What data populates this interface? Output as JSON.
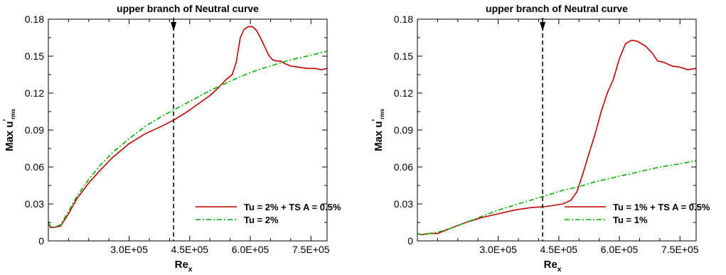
{
  "chart_data": [
    {
      "type": "line",
      "title": "",
      "annotation": "upper branch of Neutral curve",
      "xlabel": "Re",
      "xlabel_sub": "x",
      "ylabel_main": "Max u",
      "ylabel_prime": "′",
      "ylabel_sub": "rms",
      "xlim": [
        100000,
        790000
      ],
      "ylim": [
        0,
        0.18
      ],
      "xticks": [
        300000,
        450000,
        600000,
        750000
      ],
      "xtick_labels": [
        "3.0E+05",
        "4.5E+05",
        "6.0E+05",
        "7.5E+05"
      ],
      "yticks": [
        0,
        0.03,
        0.06,
        0.09,
        0.12,
        0.15,
        0.18
      ],
      "ytick_labels": [
        "0",
        "0.03",
        "0.06",
        "0.09",
        "0.12",
        "0.15",
        "0.18"
      ],
      "neutral_x": 410000,
      "legend_position": "bottom-right",
      "series": [
        {
          "name": "Tu = 2% + TS A = 0.5%",
          "color": "#c00000",
          "style": "solid",
          "x": [
            100000,
            105000,
            115000,
            130000,
            150000,
            170000,
            200000,
            230000,
            260000,
            300000,
            340000,
            380000,
            410000,
            440000,
            470000,
            500000,
            520000,
            540000,
            555000,
            565000,
            575000,
            585000,
            595000,
            605000,
            615000,
            625000,
            635000,
            645000,
            655000,
            665000,
            675000,
            685000,
            700000,
            720000,
            740000,
            760000,
            775000,
            790000
          ],
          "y": [
            0.015,
            0.011,
            0.011,
            0.012,
            0.022,
            0.034,
            0.047,
            0.058,
            0.068,
            0.079,
            0.087,
            0.093,
            0.098,
            0.104,
            0.111,
            0.118,
            0.124,
            0.131,
            0.135,
            0.145,
            0.165,
            0.172,
            0.174,
            0.174,
            0.171,
            0.165,
            0.158,
            0.151,
            0.147,
            0.146,
            0.146,
            0.144,
            0.142,
            0.141,
            0.14,
            0.14,
            0.139,
            0.14
          ]
        },
        {
          "name": "Tu = 2%",
          "color": "#00b000",
          "style": "dashdot",
          "x": [
            100000,
            105000,
            115000,
            130000,
            150000,
            170000,
            200000,
            230000,
            260000,
            300000,
            340000,
            380000,
            420000,
            460000,
            500000,
            540000,
            580000,
            620000,
            660000,
            700000,
            740000,
            790000
          ],
          "y": [
            0.015,
            0.012,
            0.011,
            0.013,
            0.024,
            0.036,
            0.05,
            0.062,
            0.072,
            0.083,
            0.093,
            0.101,
            0.108,
            0.115,
            0.122,
            0.128,
            0.134,
            0.139,
            0.143,
            0.147,
            0.15,
            0.154
          ]
        }
      ]
    },
    {
      "type": "line",
      "title": "",
      "annotation": "upper branch of Neutral curve",
      "xlabel": "Re",
      "xlabel_sub": "x",
      "ylabel_main": "Max u",
      "ylabel_prime": "′",
      "ylabel_sub": "rms",
      "xlim": [
        100000,
        790000
      ],
      "ylim": [
        0,
        0.18
      ],
      "xticks": [
        300000,
        450000,
        600000,
        750000
      ],
      "xtick_labels": [
        "3.0E+05",
        "4.5E+05",
        "6.0E+05",
        "7.5E+05"
      ],
      "yticks": [
        0,
        0.03,
        0.06,
        0.09,
        0.12,
        0.15,
        0.18
      ],
      "ytick_labels": [
        "0",
        "0.03",
        "0.06",
        "0.09",
        "0.12",
        "0.15",
        "0.18"
      ],
      "neutral_x": 410000,
      "legend_position": "bottom-right",
      "series": [
        {
          "name": "Tu = 1% + TS A = 0.5%",
          "color": "#c00000",
          "style": "solid",
          "x": [
            100000,
            110000,
            130000,
            150000,
            180000,
            220000,
            260000,
            300000,
            340000,
            380000,
            420000,
            460000,
            480000,
            495000,
            510000,
            525000,
            540000,
            555000,
            570000,
            585000,
            600000,
            615000,
            630000,
            645000,
            655000,
            665000,
            680000,
            695000,
            710000,
            730000,
            750000,
            770000,
            790000
          ],
          "y": [
            0.006,
            0.005,
            0.006,
            0.006,
            0.01,
            0.015,
            0.019,
            0.022,
            0.025,
            0.027,
            0.028,
            0.03,
            0.033,
            0.04,
            0.055,
            0.071,
            0.087,
            0.105,
            0.12,
            0.131,
            0.148,
            0.16,
            0.163,
            0.162,
            0.16,
            0.158,
            0.153,
            0.146,
            0.145,
            0.142,
            0.141,
            0.139,
            0.14
          ]
        },
        {
          "name": "Tu = 1%",
          "color": "#00b000",
          "style": "dashdot",
          "x": [
            100000,
            110000,
            130000,
            150000,
            180000,
            220000,
            260000,
            300000,
            340000,
            380000,
            420000,
            460000,
            500000,
            540000,
            580000,
            620000,
            660000,
            700000,
            740000,
            790000
          ],
          "y": [
            0.006,
            0.005,
            0.006,
            0.007,
            0.01,
            0.015,
            0.02,
            0.025,
            0.029,
            0.033,
            0.037,
            0.041,
            0.044,
            0.048,
            0.051,
            0.054,
            0.057,
            0.06,
            0.062,
            0.065
          ]
        }
      ]
    }
  ]
}
